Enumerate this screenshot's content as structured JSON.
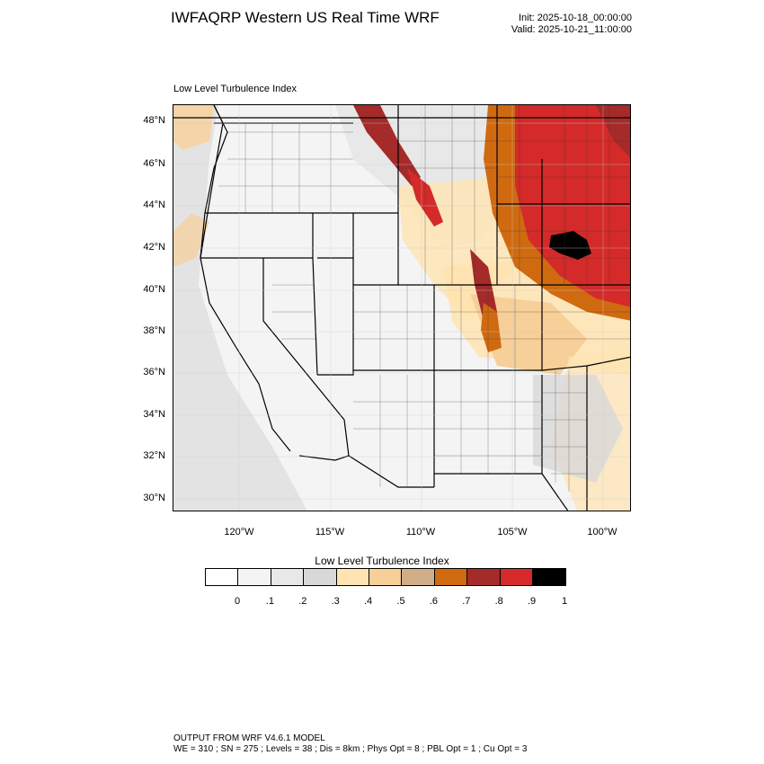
{
  "header": {
    "title": "IWFAQRP Western US Real Time WRF",
    "init": "Init: 2025-10-18_00:00:00",
    "valid": "Valid: 2025-10-21_11:00:00"
  },
  "map": {
    "subtitle": "Low Level Turbulence Index",
    "lat_labels": [
      "48°N",
      "46°N",
      "44°N",
      "42°N",
      "40°N",
      "38°N",
      "36°N",
      "34°N",
      "32°N",
      "30°N"
    ],
    "lon_labels": [
      "120°W",
      "115°W",
      "110°W",
      "105°W",
      "100°W"
    ]
  },
  "colorbar": {
    "title": "Low Level Turbulence Index",
    "colors": [
      "#ffffff",
      "#f4f4f4",
      "#e8e8e8",
      "#d8d8d8",
      "#ffe3b0",
      "#f7cf99",
      "#cfae88",
      "#d06a10",
      "#a52a2a",
      "#d42a2a",
      "#000000"
    ],
    "tick_labels": [
      "0",
      ".1",
      ".2",
      ".3",
      ".4",
      ".5",
      ".6",
      ".7",
      ".8",
      ".9",
      "1"
    ]
  },
  "footer": {
    "line1": "OUTPUT FROM WRF V4.6.1 MODEL",
    "line2": "WE = 310 ; SN = 275 ; Levels = 38 ; Dis = 8km ; Phys Opt = 8 ; PBL Opt = 1 ; Cu Opt = 3"
  }
}
